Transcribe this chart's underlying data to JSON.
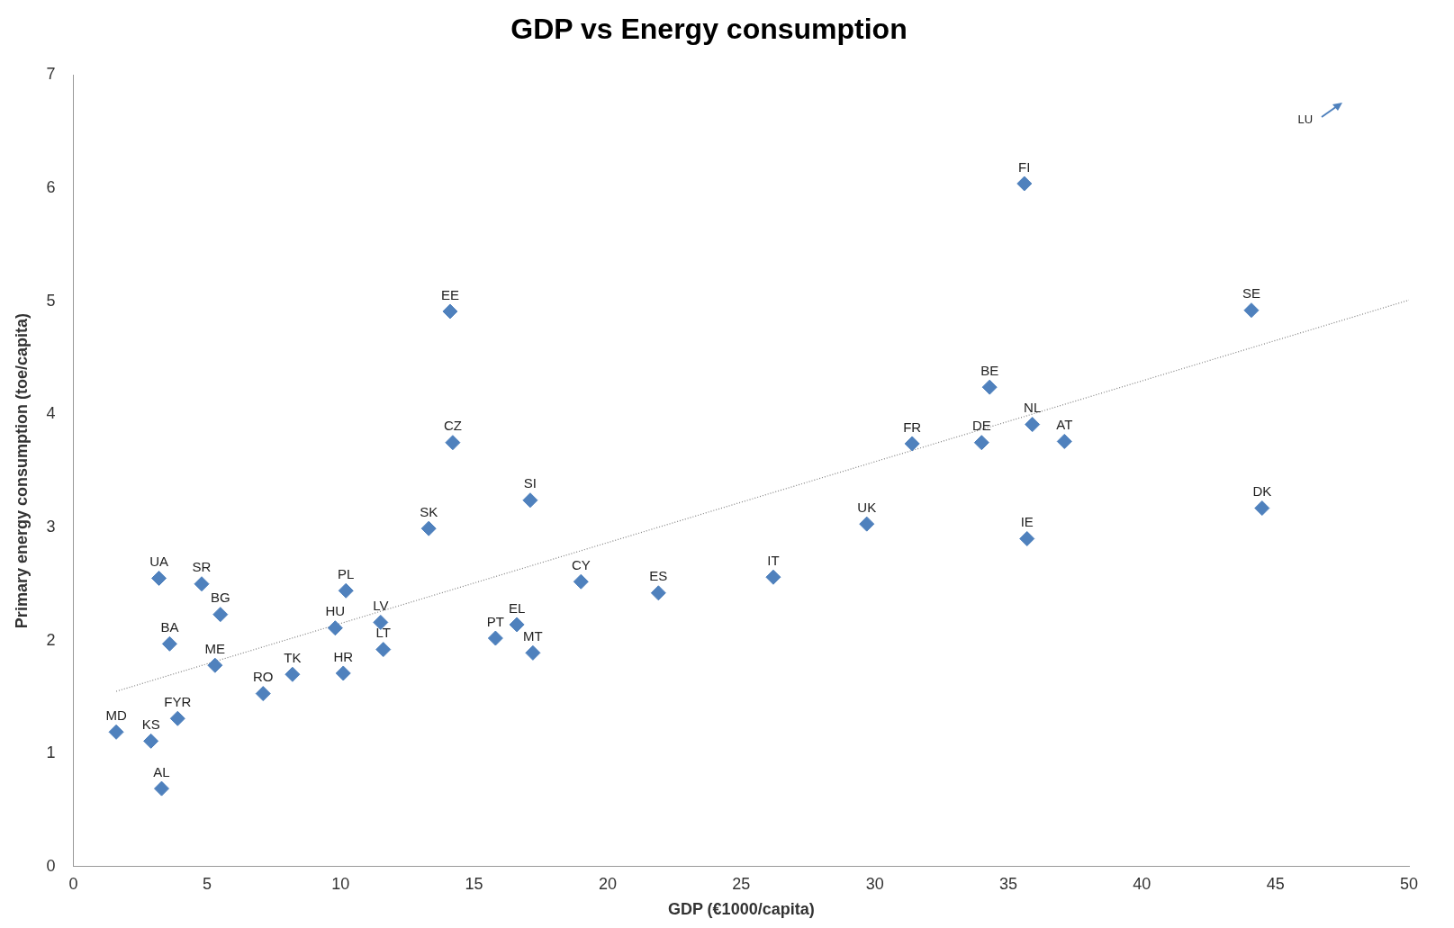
{
  "chart_data": {
    "type": "scatter",
    "title": "GDP vs Energy consumption",
    "xlabel": "GDP (€1000/capita)",
    "ylabel": "Primary energy consumption (toe/capita)",
    "xlim": [
      0,
      50
    ],
    "xticks": [
      0,
      5,
      10,
      15,
      20,
      25,
      30,
      35,
      40,
      45,
      50
    ],
    "ylim": [
      0,
      7
    ],
    "yticks": [
      0,
      1,
      2,
      3,
      4,
      5,
      6,
      7
    ],
    "grid": false,
    "legend": false,
    "marker": "diamond",
    "annotations": [
      "LU"
    ],
    "series": [
      {
        "name": "MD",
        "color": "#4f81bd",
        "x": [
          1.6
        ],
        "values": [
          1.19
        ]
      },
      {
        "name": "KS",
        "color": "#4f81bd",
        "x": [
          2.9
        ],
        "values": [
          1.11
        ]
      },
      {
        "name": "AL",
        "color": "#4f81bd",
        "x": [
          3.3
        ],
        "values": [
          0.69
        ]
      },
      {
        "name": "FYR",
        "color": "#4f81bd",
        "x": [
          3.9
        ],
        "values": [
          1.31
        ]
      },
      {
        "name": "BA",
        "color": "#4f81bd",
        "x": [
          3.6
        ],
        "values": [
          1.97
        ]
      },
      {
        "name": "UA",
        "color": "#4f81bd",
        "x": [
          3.2
        ],
        "values": [
          2.55
        ]
      },
      {
        "name": "SR",
        "color": "#4f81bd",
        "x": [
          4.8
        ],
        "values": [
          2.5
        ]
      },
      {
        "name": "BG",
        "color": "#4f81bd",
        "x": [
          5.5
        ],
        "values": [
          2.23
        ]
      },
      {
        "name": "ME",
        "color": "#4f81bd",
        "x": [
          5.3
        ],
        "values": [
          1.78
        ]
      },
      {
        "name": "RO",
        "color": "#4f81bd",
        "x": [
          7.1
        ],
        "values": [
          1.53
        ]
      },
      {
        "name": "TK",
        "color": "#4f81bd",
        "x": [
          8.2
        ],
        "values": [
          1.7
        ]
      },
      {
        "name": "HR",
        "color": "#4f81bd",
        "x": [
          10.1
        ],
        "values": [
          1.71
        ]
      },
      {
        "name": "HU",
        "color": "#4f81bd",
        "x": [
          9.8
        ],
        "values": [
          2.11
        ]
      },
      {
        "name": "PL",
        "color": "#4f81bd",
        "x": [
          10.2
        ],
        "values": [
          2.44
        ]
      },
      {
        "name": "LV",
        "color": "#4f81bd",
        "x": [
          11.5
        ],
        "values": [
          2.16
        ]
      },
      {
        "name": "LT",
        "color": "#4f81bd",
        "x": [
          11.6
        ],
        "values": [
          1.92
        ]
      },
      {
        "name": "SK",
        "color": "#4f81bd",
        "x": [
          13.3
        ],
        "values": [
          2.99
        ]
      },
      {
        "name": "EE",
        "color": "#4f81bd",
        "x": [
          14.1
        ],
        "values": [
          4.91
        ]
      },
      {
        "name": "CZ",
        "color": "#4f81bd",
        "x": [
          14.2
        ],
        "values": [
          3.75
        ]
      },
      {
        "name": "SI",
        "color": "#4f81bd",
        "x": [
          17.1
        ],
        "values": [
          3.24
        ]
      },
      {
        "name": "PT",
        "color": "#4f81bd",
        "x": [
          15.8
        ],
        "values": [
          2.02
        ]
      },
      {
        "name": "EL",
        "color": "#4f81bd",
        "x": [
          16.6
        ],
        "values": [
          2.14
        ]
      },
      {
        "name": "MT",
        "color": "#4f81bd",
        "x": [
          17.2
        ],
        "values": [
          1.89
        ]
      },
      {
        "name": "CY",
        "color": "#4f81bd",
        "x": [
          19
        ],
        "values": [
          2.52
        ]
      },
      {
        "name": "ES",
        "color": "#4f81bd",
        "x": [
          21.9
        ],
        "values": [
          2.42
        ]
      },
      {
        "name": "IT",
        "color": "#4f81bd",
        "x": [
          26.2
        ],
        "values": [
          2.56
        ]
      },
      {
        "name": "UK",
        "color": "#4f81bd",
        "x": [
          29.7
        ],
        "values": [
          3.03
        ]
      },
      {
        "name": "FR",
        "color": "#4f81bd",
        "x": [
          31.4
        ],
        "values": [
          3.74
        ]
      },
      {
        "name": "DE",
        "color": "#4f81bd",
        "x": [
          34
        ],
        "values": [
          3.75
        ]
      },
      {
        "name": "BE",
        "color": "#4f81bd",
        "x": [
          34.3
        ],
        "values": [
          4.24
        ]
      },
      {
        "name": "FI",
        "color": "#4f81bd",
        "x": [
          35.6
        ],
        "values": [
          6.04
        ]
      },
      {
        "name": "NL",
        "color": "#4f81bd",
        "x": [
          35.9
        ],
        "values": [
          3.91
        ]
      },
      {
        "name": "IE",
        "color": "#4f81bd",
        "x": [
          35.7
        ],
        "values": [
          2.9
        ]
      },
      {
        "name": "AT",
        "color": "#4f81bd",
        "x": [
          37.1
        ],
        "values": [
          3.76
        ]
      },
      {
        "name": "SE",
        "color": "#4f81bd",
        "x": [
          44.1
        ],
        "values": [
          4.92
        ]
      },
      {
        "name": "DK",
        "color": "#4f81bd",
        "x": [
          44.5
        ],
        "values": [
          3.17
        ]
      },
      {
        "type": "line",
        "color": "#808080",
        "line_style": "dotted",
        "marker": "none",
        "x": [
          1.6,
          50
        ],
        "values": [
          1.55,
          5.01
        ]
      }
    ]
  }
}
